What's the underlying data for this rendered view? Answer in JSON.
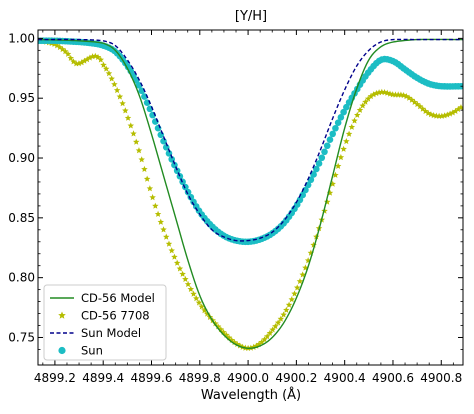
{
  "chart_data": {
    "type": "line",
    "title": "[Y/H]",
    "xlabel": "Wavelength (Å)",
    "ylabel": "",
    "xlim": [
      4899.13,
      4900.89
    ],
    "ylim": [
      0.727,
      1.007
    ],
    "xticks": [
      4899.2,
      4899.4,
      4899.6,
      4899.8,
      4900.0,
      4900.2,
      4900.4,
      4900.6,
      4900.8
    ],
    "xtick_labels": [
      "4899.2",
      "4899.4",
      "4899.6",
      "4899.8",
      "4900.0",
      "4900.2",
      "4900.4",
      "4900.6",
      "4900.8"
    ],
    "yticks": [
      0.75,
      0.8,
      0.85,
      0.9,
      0.95,
      1.0
    ],
    "ytick_labels": [
      "0.75",
      "0.80",
      "0.85",
      "0.90",
      "0.95",
      "1.00"
    ],
    "legend_position": "lower-left",
    "grid": false,
    "series": [
      {
        "name": "CD-56 Model",
        "style": "line",
        "color": "#228B22",
        "x": [
          4899.13,
          4899.3,
          4899.4,
          4899.45,
          4899.5,
          4899.55,
          4899.6,
          4899.65,
          4899.7,
          4899.75,
          4899.8,
          4899.85,
          4899.9,
          4899.95,
          4900.0,
          4900.05,
          4900.1,
          4900.15,
          4900.2,
          4900.25,
          4900.3,
          4900.35,
          4900.4,
          4900.45,
          4900.5,
          4900.55,
          4900.6,
          4900.7,
          4900.89
        ],
        "y": [
          0.999,
          0.998,
          0.996,
          0.99,
          0.975,
          0.952,
          0.92,
          0.885,
          0.85,
          0.815,
          0.785,
          0.765,
          0.752,
          0.744,
          0.741,
          0.743,
          0.75,
          0.763,
          0.783,
          0.81,
          0.845,
          0.885,
          0.925,
          0.958,
          0.982,
          0.993,
          0.997,
          0.999,
          0.999
        ]
      },
      {
        "name": "CD-56 7708",
        "style": "markers",
        "marker": "star",
        "color": "#B5BD00",
        "x": [
          4899.13,
          4899.2,
          4899.25,
          4899.28,
          4899.3,
          4899.33,
          4899.36,
          4899.38,
          4899.4,
          4899.45,
          4899.5,
          4899.55,
          4899.6,
          4899.65,
          4899.7,
          4899.75,
          4899.8,
          4899.85,
          4899.9,
          4899.95,
          4900.0,
          4900.05,
          4900.1,
          4900.15,
          4900.2,
          4900.25,
          4900.3,
          4900.35,
          4900.4,
          4900.45,
          4900.5,
          4900.55,
          4900.6,
          4900.65,
          4900.7,
          4900.75,
          4900.8,
          4900.85,
          4900.89
        ],
        "y": [
          0.998,
          0.995,
          0.988,
          0.98,
          0.979,
          0.982,
          0.985,
          0.984,
          0.978,
          0.96,
          0.935,
          0.905,
          0.87,
          0.84,
          0.815,
          0.795,
          0.778,
          0.765,
          0.754,
          0.745,
          0.741,
          0.745,
          0.756,
          0.77,
          0.79,
          0.815,
          0.845,
          0.878,
          0.91,
          0.935,
          0.95,
          0.955,
          0.953,
          0.952,
          0.945,
          0.937,
          0.935,
          0.938,
          0.943
        ]
      },
      {
        "name": "Sun Model",
        "style": "dashed",
        "color": "#00008B",
        "x": [
          4899.13,
          4899.3,
          4899.4,
          4899.45,
          4899.5,
          4899.55,
          4899.6,
          4899.65,
          4899.7,
          4899.75,
          4899.8,
          4899.85,
          4899.9,
          4899.95,
          4900.0,
          4900.05,
          4900.1,
          4900.15,
          4900.2,
          4900.25,
          4900.3,
          4900.35,
          4900.4,
          4900.45,
          4900.5,
          4900.55,
          4900.6,
          4900.7,
          4900.89
        ],
        "y": [
          0.999,
          0.999,
          0.998,
          0.994,
          0.982,
          0.965,
          0.943,
          0.918,
          0.893,
          0.87,
          0.853,
          0.84,
          0.834,
          0.831,
          0.831,
          0.833,
          0.838,
          0.848,
          0.863,
          0.883,
          0.907,
          0.933,
          0.957,
          0.977,
          0.99,
          0.997,
          0.999,
          0.999,
          0.999
        ]
      },
      {
        "name": "Sun",
        "style": "markers",
        "marker": "circle",
        "color": "#1CBDC4",
        "x": [
          4899.13,
          4899.2,
          4899.3,
          4899.35,
          4899.4,
          4899.45,
          4899.5,
          4899.55,
          4899.6,
          4899.65,
          4899.7,
          4899.75,
          4899.8,
          4899.85,
          4899.9,
          4899.95,
          4900.0,
          4900.05,
          4900.1,
          4900.15,
          4900.2,
          4900.25,
          4900.3,
          4900.35,
          4900.4,
          4900.45,
          4900.5,
          4900.55,
          4900.6,
          4900.65,
          4900.7,
          4900.75,
          4900.8,
          4900.89
        ],
        "y": [
          0.998,
          0.998,
          0.997,
          0.996,
          0.994,
          0.989,
          0.977,
          0.96,
          0.938,
          0.914,
          0.892,
          0.872,
          0.855,
          0.843,
          0.835,
          0.831,
          0.83,
          0.832,
          0.837,
          0.846,
          0.86,
          0.878,
          0.898,
          0.92,
          0.94,
          0.957,
          0.972,
          0.982,
          0.981,
          0.974,
          0.967,
          0.962,
          0.96,
          0.96
        ]
      }
    ]
  }
}
